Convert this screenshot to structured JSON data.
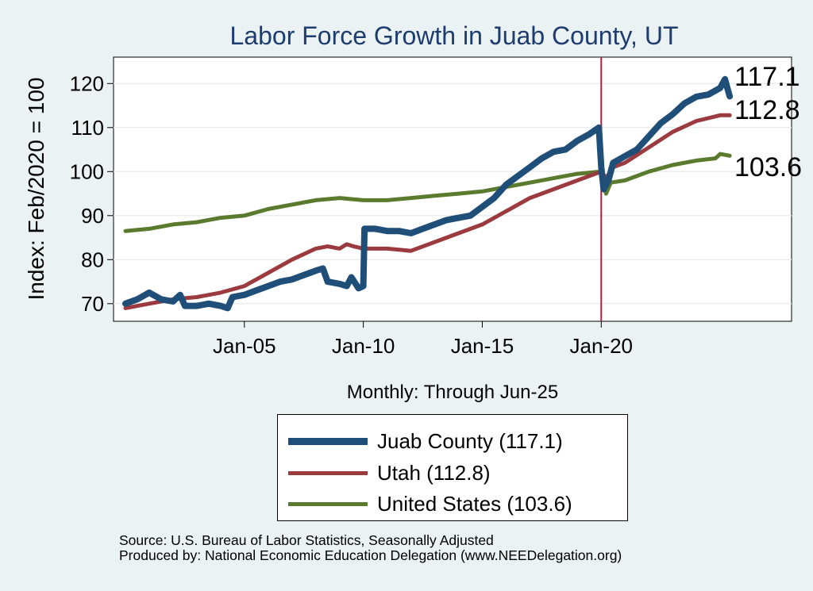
{
  "colors": {
    "background": "#eaf2f3",
    "plot_area": "#ffffff",
    "title": "#1e3c6e",
    "gridline": "#e8eef0",
    "vline": "#b02040"
  },
  "source": {
    "line1": "Source: U.S. Bureau of Labor Statistics, Seasonally Adjusted",
    "line2": "Produced by: National Economic Education Delegation (www.NEEDelegation.org)"
  },
  "chart_data": {
    "type": "line",
    "title": "Labor Force Growth in Juab  County, UT",
    "xlabel": "Monthly: Through Jun-25",
    "ylabel": "Index: Feb/2020 = 100",
    "ylim": [
      66,
      126
    ],
    "y_ticks": [
      70,
      80,
      90,
      100,
      110,
      120
    ],
    "x_ticks": [
      {
        "label": "Jan-05",
        "x": 2005.0
      },
      {
        "label": "Jan-10",
        "x": 2010.0
      },
      {
        "label": "Jan-15",
        "x": 2015.0
      },
      {
        "label": "Jan-20",
        "x": 2020.0
      }
    ],
    "xlim": [
      1999.5,
      2028.0
    ],
    "vertical_marker": {
      "x": 2020.0
    },
    "grid": true,
    "legend_placement": "bottom",
    "series": [
      {
        "name": "Juab  County (117.1)",
        "end_label": "117.1",
        "color": "#1f4e79",
        "width": 8,
        "points": [
          [
            2000.0,
            70.0
          ],
          [
            2000.5,
            71.0
          ],
          [
            2001.0,
            72.5
          ],
          [
            2001.5,
            71.0
          ],
          [
            2002.0,
            70.5
          ],
          [
            2002.3,
            72.0
          ],
          [
            2002.5,
            69.5
          ],
          [
            2003.0,
            69.5
          ],
          [
            2003.5,
            70.0
          ],
          [
            2004.0,
            69.5
          ],
          [
            2004.3,
            69.0
          ],
          [
            2004.5,
            71.5
          ],
          [
            2005.0,
            72.0
          ],
          [
            2005.5,
            73.0
          ],
          [
            2006.0,
            74.0
          ],
          [
            2006.5,
            75.0
          ],
          [
            2007.0,
            75.5
          ],
          [
            2007.5,
            76.5
          ],
          [
            2008.0,
            77.5
          ],
          [
            2008.3,
            78.0
          ],
          [
            2008.5,
            75.0
          ],
          [
            2009.0,
            74.5
          ],
          [
            2009.3,
            74.0
          ],
          [
            2009.5,
            76.0
          ],
          [
            2009.8,
            73.5
          ],
          [
            2010.0,
            74.0
          ],
          [
            2010.05,
            87.0
          ],
          [
            2010.5,
            87.0
          ],
          [
            2011.0,
            86.5
          ],
          [
            2011.5,
            86.5
          ],
          [
            2012.0,
            86.0
          ],
          [
            2012.5,
            87.0
          ],
          [
            2013.0,
            88.0
          ],
          [
            2013.5,
            89.0
          ],
          [
            2014.0,
            89.5
          ],
          [
            2014.5,
            90.0
          ],
          [
            2015.0,
            92.0
          ],
          [
            2015.5,
            94.0
          ],
          [
            2016.0,
            97.0
          ],
          [
            2016.5,
            99.0
          ],
          [
            2017.0,
            101.0
          ],
          [
            2017.5,
            103.0
          ],
          [
            2018.0,
            104.5
          ],
          [
            2018.5,
            105.0
          ],
          [
            2019.0,
            107.0
          ],
          [
            2019.5,
            108.5
          ],
          [
            2019.9,
            110.0
          ],
          [
            2020.0,
            101.0
          ],
          [
            2020.1,
            96.0
          ],
          [
            2020.3,
            98.0
          ],
          [
            2020.5,
            102.0
          ],
          [
            2021.0,
            103.5
          ],
          [
            2021.5,
            105.0
          ],
          [
            2022.0,
            108.0
          ],
          [
            2022.5,
            111.0
          ],
          [
            2023.0,
            113.0
          ],
          [
            2023.5,
            115.5
          ],
          [
            2024.0,
            117.0
          ],
          [
            2024.5,
            117.5
          ],
          [
            2025.0,
            119.0
          ],
          [
            2025.2,
            121.0
          ],
          [
            2025.3,
            119.0
          ],
          [
            2025.4,
            117.1
          ]
        ]
      },
      {
        "name": "Utah (112.8)",
        "end_label": "112.8",
        "color": "#9b3a3f",
        "width": 5,
        "points": [
          [
            2000.0,
            69.0
          ],
          [
            2001.0,
            70.0
          ],
          [
            2002.0,
            71.0
          ],
          [
            2003.0,
            71.5
          ],
          [
            2004.0,
            72.5
          ],
          [
            2005.0,
            74.0
          ],
          [
            2006.0,
            77.0
          ],
          [
            2007.0,
            80.0
          ],
          [
            2008.0,
            82.5
          ],
          [
            2008.5,
            83.0
          ],
          [
            2009.0,
            82.5
          ],
          [
            2009.3,
            83.5
          ],
          [
            2009.6,
            83.0
          ],
          [
            2010.0,
            82.5
          ],
          [
            2011.0,
            82.5
          ],
          [
            2012.0,
            82.0
          ],
          [
            2013.0,
            84.0
          ],
          [
            2014.0,
            86.0
          ],
          [
            2015.0,
            88.0
          ],
          [
            2016.0,
            91.0
          ],
          [
            2017.0,
            94.0
          ],
          [
            2018.0,
            96.0
          ],
          [
            2019.0,
            98.0
          ],
          [
            2020.0,
            100.0
          ],
          [
            2020.2,
            98.5
          ],
          [
            2020.5,
            101.0
          ],
          [
            2021.0,
            102.0
          ],
          [
            2022.0,
            105.5
          ],
          [
            2023.0,
            109.0
          ],
          [
            2024.0,
            111.5
          ],
          [
            2025.0,
            112.8
          ],
          [
            2025.4,
            112.8
          ]
        ]
      },
      {
        "name": "United States (103.6)",
        "end_label": "103.6",
        "color": "#5a7a2e",
        "width": 5,
        "points": [
          [
            2000.0,
            86.5
          ],
          [
            2001.0,
            87.0
          ],
          [
            2002.0,
            88.0
          ],
          [
            2003.0,
            88.5
          ],
          [
            2004.0,
            89.5
          ],
          [
            2005.0,
            90.0
          ],
          [
            2006.0,
            91.5
          ],
          [
            2007.0,
            92.5
          ],
          [
            2008.0,
            93.5
          ],
          [
            2009.0,
            94.0
          ],
          [
            2010.0,
            93.5
          ],
          [
            2011.0,
            93.5
          ],
          [
            2012.0,
            94.0
          ],
          [
            2013.0,
            94.5
          ],
          [
            2014.0,
            95.0
          ],
          [
            2015.0,
            95.5
          ],
          [
            2016.0,
            96.5
          ],
          [
            2017.0,
            97.5
          ],
          [
            2018.0,
            98.5
          ],
          [
            2019.0,
            99.5
          ],
          [
            2020.0,
            100.0
          ],
          [
            2020.2,
            95.0
          ],
          [
            2020.4,
            97.5
          ],
          [
            2021.0,
            98.0
          ],
          [
            2022.0,
            100.0
          ],
          [
            2023.0,
            101.5
          ],
          [
            2024.0,
            102.5
          ],
          [
            2024.8,
            103.0
          ],
          [
            2025.0,
            104.0
          ],
          [
            2025.4,
            103.6
          ]
        ]
      }
    ]
  }
}
